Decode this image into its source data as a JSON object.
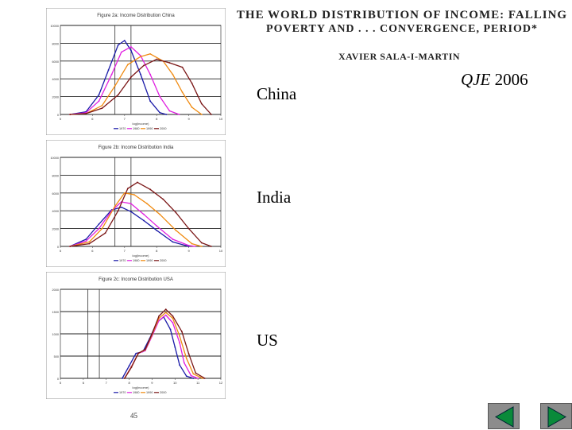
{
  "paper": {
    "title_line1": "THE WORLD DISTRIBUTION OF INCOME: FALLING",
    "title_line2": "POVERTY AND . . . CONVERGENCE, PERIOD*",
    "author": "XAVIER SALA-I-MARTIN"
  },
  "journal": {
    "name": "QJE",
    "year": "2006"
  },
  "labels": {
    "china": "China",
    "india": "India",
    "us": "US"
  },
  "page_number": "45",
  "nav": {
    "prev_icon": "triangle-left-icon",
    "next_icon": "triangle-right-icon"
  },
  "chart_data": [
    {
      "type": "line",
      "title": "Figure 2a: Income Distribution China",
      "xlabel": "log(income)",
      "xlim": [
        5,
        10
      ],
      "ylim": [
        0,
        10000
      ],
      "xticks": [
        "5",
        "6",
        "7",
        "8",
        "9",
        "10"
      ],
      "yticks": [
        "0",
        "2000",
        "4000",
        "6000",
        "8000",
        "10000"
      ],
      "vlines": [
        6.7,
        7.2
      ],
      "grid": true,
      "legend": "bottom",
      "series": [
        {
          "name": "1970",
          "color": "#1a1aa8",
          "x": [
            5.3,
            5.8,
            6.2,
            6.5,
            6.8,
            7.0,
            7.2,
            7.5,
            7.8,
            8.1,
            8.3
          ],
          "y": [
            0,
            300,
            2200,
            5000,
            7800,
            8300,
            7200,
            4500,
            1500,
            200,
            0
          ]
        },
        {
          "name": "1980",
          "color": "#e020e0",
          "x": [
            5.3,
            5.8,
            6.2,
            6.6,
            6.9,
            7.2,
            7.5,
            7.8,
            8.1,
            8.4,
            8.7
          ],
          "y": [
            0,
            200,
            1500,
            4500,
            7000,
            7600,
            6600,
            4500,
            2000,
            400,
            0
          ]
        },
        {
          "name": "1990",
          "color": "#f08a10",
          "x": [
            5.3,
            5.8,
            6.3,
            6.7,
            7.1,
            7.5,
            7.8,
            8.2,
            8.5,
            8.8,
            9.1,
            9.4
          ],
          "y": [
            0,
            100,
            1000,
            3200,
            5600,
            6500,
            6800,
            6000,
            4500,
            2500,
            800,
            0
          ]
        },
        {
          "name": "2000",
          "color": "#7a1515",
          "x": [
            5.3,
            5.8,
            6.3,
            6.8,
            7.2,
            7.6,
            8.0,
            8.4,
            8.8,
            9.1,
            9.4,
            9.7
          ],
          "y": [
            0,
            100,
            700,
            2200,
            4200,
            5500,
            6200,
            5800,
            5300,
            3500,
            1200,
            0
          ]
        }
      ]
    },
    {
      "type": "line",
      "title": "Figure 2b: Income Distribution India",
      "xlabel": "log(income)",
      "xlim": [
        5,
        10
      ],
      "ylim": [
        0,
        10000
      ],
      "xticks": [
        "5",
        "6",
        "7",
        "8",
        "9",
        "10"
      ],
      "yticks": [
        "0",
        "2000",
        "4000",
        "6000",
        "8000",
        "10000"
      ],
      "vlines": [
        6.7,
        7.2
      ],
      "grid": true,
      "legend": "bottom",
      "series": [
        {
          "name": "1970",
          "color": "#1a1aa8",
          "x": [
            5.3,
            5.8,
            6.2,
            6.6,
            6.9,
            7.2,
            7.6,
            8.0,
            8.5,
            9.0
          ],
          "y": [
            0,
            800,
            2500,
            4100,
            4400,
            3900,
            2900,
            1800,
            500,
            0
          ]
        },
        {
          "name": "1980",
          "color": "#e020e0",
          "x": [
            5.3,
            5.8,
            6.2,
            6.6,
            6.9,
            7.2,
            7.6,
            8.0,
            8.5,
            9.0,
            9.2
          ],
          "y": [
            0,
            600,
            2000,
            4000,
            5000,
            4800,
            3600,
            2300,
            800,
            100,
            0
          ]
        },
        {
          "name": "1990",
          "color": "#f08a10",
          "x": [
            5.3,
            5.9,
            6.3,
            6.7,
            7.0,
            7.3,
            7.7,
            8.1,
            8.6,
            9.1,
            9.4
          ],
          "y": [
            0,
            500,
            2000,
            4500,
            6000,
            5800,
            4800,
            3600,
            1800,
            300,
            0
          ]
        },
        {
          "name": "2000",
          "color": "#7a1515",
          "x": [
            5.3,
            5.9,
            6.4,
            6.8,
            7.1,
            7.4,
            7.8,
            8.2,
            8.6,
            9.0,
            9.4,
            9.7
          ],
          "y": [
            0,
            300,
            1500,
            4000,
            6500,
            7200,
            6400,
            5300,
            3800,
            2000,
            400,
            0
          ]
        }
      ]
    },
    {
      "type": "line",
      "title": "Figure 2c: Income Distribution USA",
      "xlabel": "log(income)",
      "xlim": [
        5,
        12
      ],
      "ylim": [
        0,
        2000
      ],
      "xticks": [
        "5",
        "6",
        "7",
        "8",
        "9",
        "10",
        "11",
        "12"
      ],
      "yticks": [
        "0",
        "500",
        "1000",
        "1500",
        "2000"
      ],
      "vlines": [
        6.2,
        6.7
      ],
      "grid": true,
      "legend": "bottom",
      "series": [
        {
          "name": "1970",
          "color": "#1a1aa8",
          "x": [
            7.7,
            8.0,
            8.3,
            8.6,
            8.9,
            9.2,
            9.5,
            9.8,
            10.0,
            10.2,
            10.5,
            10.8
          ],
          "y": [
            0,
            280,
            560,
            600,
            900,
            1250,
            1380,
            1100,
            700,
            300,
            50,
            0
          ]
        },
        {
          "name": "1980",
          "color": "#e020e0",
          "x": [
            7.8,
            8.1,
            8.4,
            8.7,
            9.0,
            9.3,
            9.6,
            9.9,
            10.2,
            10.4,
            10.7,
            11.0
          ],
          "y": [
            0,
            270,
            560,
            620,
            950,
            1300,
            1420,
            1250,
            800,
            350,
            60,
            0
          ]
        },
        {
          "name": "1990",
          "color": "#f08a10",
          "x": [
            7.8,
            8.1,
            8.4,
            8.7,
            9.0,
            9.3,
            9.6,
            9.9,
            10.2,
            10.5,
            10.8,
            11.2
          ],
          "y": [
            0,
            260,
            560,
            640,
            980,
            1350,
            1480,
            1350,
            950,
            450,
            100,
            0
          ]
        },
        {
          "name": "2000",
          "color": "#7a1515",
          "x": [
            7.8,
            8.1,
            8.4,
            8.7,
            9.0,
            9.3,
            9.6,
            9.9,
            10.3,
            10.6,
            10.9,
            11.3
          ],
          "y": [
            0,
            250,
            560,
            650,
            1000,
            1400,
            1550,
            1400,
            1050,
            550,
            120,
            0
          ]
        }
      ]
    }
  ]
}
